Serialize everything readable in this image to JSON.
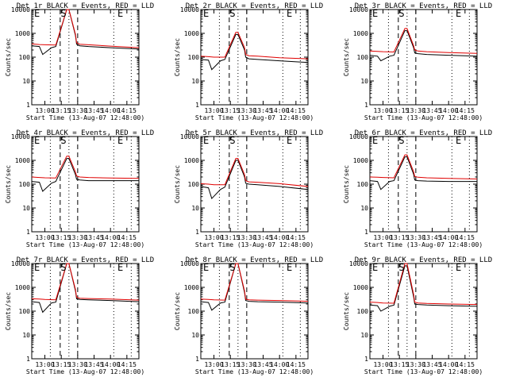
{
  "figure": {
    "xlabel": "Start Time (13-Aug-07 12:48:00)",
    "ylabel": "Counts/sec",
    "x_tick_labels": [
      "13:00",
      "13:15",
      "13:30",
      "13:45",
      "14:00",
      "14:15"
    ],
    "y_tick_labels": [
      "1",
      "10",
      "100",
      "1000",
      "10000"
    ],
    "markers": {
      "left": "E",
      "middle": "S",
      "right": "E"
    },
    "colors": {
      "events": "#000000",
      "lld": "#e00000"
    },
    "series_meaning": {
      "events": "Events",
      "lld": "LLD"
    },
    "y_scale": "log"
  },
  "chart_data": [
    {
      "type": "line",
      "title": "Det 1r BLACK = Events, RED = LLD",
      "xlim": [
        "12:48",
        "14:26"
      ],
      "ylim": [
        1,
        10000
      ],
      "series": [
        {
          "name": "Events",
          "x": [
            "12:48",
            "12:55",
            "12:58",
            "13:06",
            "13:10",
            "13:20",
            "13:22",
            "13:28",
            "13:29",
            "13:32",
            "13:40",
            "14:00",
            "14:26"
          ],
          "y": [
            300,
            280,
            130,
            250,
            280,
            10000,
            10000,
            800,
            350,
            300,
            280,
            250,
            220
          ]
        },
        {
          "name": "LLD",
          "x": [
            "12:48",
            "12:55",
            "13:00",
            "13:10",
            "13:20",
            "13:22",
            "13:28",
            "13:29",
            "13:32",
            "13:40",
            "14:00",
            "14:26"
          ],
          "y": [
            360,
            340,
            330,
            320,
            10000,
            10000,
            900,
            400,
            350,
            330,
            290,
            250
          ]
        }
      ],
      "vlines_dashed": [
        "13:14",
        "13:30"
      ],
      "vlines_dotted": [
        "13:05",
        "13:22",
        "14:03",
        "14:19"
      ]
    },
    {
      "type": "line",
      "title": "Det 2r BLACK = Events, RED = LLD",
      "xlim": [
        "12:48",
        "14:26"
      ],
      "ylim": [
        1,
        10000
      ],
      "series": [
        {
          "name": "Events",
          "x": [
            "12:48",
            "12:55",
            "12:58",
            "13:06",
            "13:10",
            "13:20",
            "13:22",
            "13:28",
            "13:29",
            "13:32",
            "13:40",
            "14:00",
            "14:26"
          ],
          "y": [
            80,
            75,
            30,
            70,
            80,
            900,
            900,
            200,
            100,
            85,
            80,
            70,
            60
          ]
        },
        {
          "name": "LLD",
          "x": [
            "12:48",
            "12:55",
            "13:00",
            "13:10",
            "13:20",
            "13:22",
            "13:28",
            "13:29",
            "13:32",
            "13:40",
            "14:00",
            "14:26"
          ],
          "y": [
            110,
            105,
            100,
            100,
            1100,
            1100,
            250,
            130,
            115,
            110,
            95,
            85
          ]
        }
      ],
      "vlines_dashed": [
        "13:14",
        "13:30"
      ],
      "vlines_dotted": [
        "13:05",
        "13:22",
        "14:03",
        "14:19"
      ]
    },
    {
      "type": "line",
      "title": "Det 3r BLACK = Events, RED = LLD",
      "xlim": [
        "12:48",
        "14:26"
      ],
      "ylim": [
        1,
        10000
      ],
      "series": [
        {
          "name": "Events",
          "x": [
            "12:48",
            "12:55",
            "12:58",
            "13:06",
            "13:10",
            "13:20",
            "13:22",
            "13:28",
            "13:29",
            "13:32",
            "13:40",
            "14:00",
            "14:26"
          ],
          "y": [
            120,
            110,
            70,
            110,
            120,
            1300,
            1300,
            250,
            150,
            140,
            130,
            120,
            110
          ]
        },
        {
          "name": "LLD",
          "x": [
            "12:48",
            "12:55",
            "13:00",
            "13:10",
            "13:20",
            "13:22",
            "13:28",
            "13:29",
            "13:32",
            "13:40",
            "14:00",
            "14:26"
          ],
          "y": [
            180,
            175,
            170,
            165,
            1600,
            1600,
            300,
            200,
            180,
            170,
            155,
            145
          ]
        }
      ],
      "vlines_dashed": [
        "13:14",
        "13:30"
      ],
      "vlines_dotted": [
        "13:05",
        "13:22",
        "14:03",
        "14:19"
      ]
    },
    {
      "type": "line",
      "title": "Det 4r BLACK = Events, RED = LLD",
      "xlim": [
        "12:48",
        "14:26"
      ],
      "ylim": [
        1,
        10000
      ],
      "series": [
        {
          "name": "Events",
          "x": [
            "12:48",
            "12:55",
            "12:58",
            "13:06",
            "13:10",
            "13:20",
            "13:22",
            "13:28",
            "13:29",
            "13:32",
            "13:40",
            "14:00",
            "14:26"
          ],
          "y": [
            130,
            120,
            50,
            110,
            130,
            1200,
            1200,
            250,
            160,
            150,
            140,
            140,
            140
          ]
        },
        {
          "name": "LLD",
          "x": [
            "12:48",
            "12:55",
            "13:00",
            "13:10",
            "13:20",
            "13:22",
            "13:28",
            "13:29",
            "13:32",
            "13:40",
            "14:00",
            "14:26"
          ],
          "y": [
            200,
            190,
            185,
            180,
            1500,
            1500,
            320,
            220,
            200,
            190,
            180,
            175
          ]
        }
      ],
      "vlines_dashed": [
        "13:14",
        "13:30"
      ],
      "vlines_dotted": [
        "13:05",
        "13:22",
        "14:03",
        "14:19"
      ]
    },
    {
      "type": "line",
      "title": "Det 5r BLACK = Events, RED = LLD",
      "xlim": [
        "12:48",
        "14:26"
      ],
      "ylim": [
        1,
        10000
      ],
      "series": [
        {
          "name": "Events",
          "x": [
            "12:48",
            "12:55",
            "12:58",
            "13:06",
            "13:10",
            "13:20",
            "13:22",
            "13:28",
            "13:29",
            "13:32",
            "13:40",
            "14:00",
            "14:26"
          ],
          "y": [
            80,
            70,
            25,
            60,
            75,
            1000,
            1000,
            200,
            110,
            100,
            95,
            80,
            60
          ]
        },
        {
          "name": "LLD",
          "x": [
            "12:48",
            "12:55",
            "13:00",
            "13:10",
            "13:20",
            "13:22",
            "13:28",
            "13:29",
            "13:32",
            "13:40",
            "14:00",
            "14:26"
          ],
          "y": [
            105,
            100,
            95,
            95,
            1200,
            1200,
            250,
            140,
            125,
            120,
            105,
            80
          ]
        }
      ],
      "vlines_dashed": [
        "13:14",
        "13:30"
      ],
      "vlines_dotted": [
        "13:05",
        "13:22",
        "14:03",
        "14:19"
      ]
    },
    {
      "type": "line",
      "title": "Det 6r BLACK = Events, RED = LLD",
      "xlim": [
        "12:48",
        "14:26"
      ],
      "ylim": [
        1,
        10000
      ],
      "series": [
        {
          "name": "Events",
          "x": [
            "12:48",
            "12:55",
            "12:58",
            "13:06",
            "13:10",
            "13:20",
            "13:22",
            "13:28",
            "13:29",
            "13:32",
            "13:40",
            "14:00",
            "14:26"
          ],
          "y": [
            140,
            130,
            60,
            130,
            140,
            1400,
            1400,
            260,
            150,
            140,
            135,
            130,
            130
          ]
        },
        {
          "name": "LLD",
          "x": [
            "12:48",
            "12:55",
            "13:00",
            "13:10",
            "13:20",
            "13:22",
            "13:28",
            "13:29",
            "13:32",
            "13:40",
            "14:00",
            "14:26"
          ],
          "y": [
            200,
            195,
            190,
            185,
            1700,
            1700,
            330,
            210,
            195,
            185,
            175,
            165
          ]
        }
      ],
      "vlines_dashed": [
        "13:14",
        "13:30"
      ],
      "vlines_dotted": [
        "13:05",
        "13:22",
        "14:03",
        "14:19"
      ]
    },
    {
      "type": "line",
      "title": "Det 7r BLACK = Events, RED = LLD",
      "xlim": [
        "12:48",
        "14:26"
      ],
      "ylim": [
        1,
        10000
      ],
      "series": [
        {
          "name": "Events",
          "x": [
            "12:48",
            "12:55",
            "12:58",
            "13:06",
            "13:10",
            "13:20",
            "13:22",
            "13:28",
            "13:29",
            "13:32",
            "13:40",
            "14:00",
            "14:26"
          ],
          "y": [
            250,
            230,
            90,
            220,
            240,
            10000,
            10000,
            700,
            330,
            310,
            300,
            280,
            250
          ]
        },
        {
          "name": "LLD",
          "x": [
            "12:48",
            "12:55",
            "13:00",
            "13:10",
            "13:20",
            "13:22",
            "13:28",
            "13:29",
            "13:32",
            "13:40",
            "14:00",
            "14:26"
          ],
          "y": [
            330,
            320,
            310,
            300,
            10000,
            10000,
            800,
            380,
            350,
            340,
            320,
            290
          ]
        }
      ],
      "vlines_dashed": [
        "13:14",
        "13:30"
      ],
      "vlines_dotted": [
        "13:05",
        "13:22",
        "14:03",
        "14:19"
      ]
    },
    {
      "type": "line",
      "title": "Det 8r BLACK = Events, RED = LLD",
      "xlim": [
        "12:48",
        "14:26"
      ],
      "ylim": [
        1,
        10000
      ],
      "series": [
        {
          "name": "Events",
          "x": [
            "12:48",
            "12:55",
            "12:58",
            "13:06",
            "13:10",
            "13:20",
            "13:22",
            "13:28",
            "13:29",
            "13:32",
            "13:40",
            "14:00",
            "14:26"
          ],
          "y": [
            250,
            230,
            110,
            220,
            240,
            10000,
            10000,
            600,
            280,
            260,
            250,
            240,
            220
          ]
        },
        {
          "name": "LLD",
          "x": [
            "12:48",
            "12:55",
            "13:00",
            "13:10",
            "13:20",
            "13:22",
            "13:28",
            "13:29",
            "13:32",
            "13:40",
            "14:00",
            "14:26"
          ],
          "y": [
            320,
            310,
            300,
            290,
            10000,
            10000,
            700,
            320,
            300,
            290,
            280,
            260
          ]
        }
      ],
      "vlines_dashed": [
        "13:14",
        "13:30"
      ],
      "vlines_dotted": [
        "13:05",
        "13:22",
        "14:03",
        "14:19"
      ]
    },
    {
      "type": "line",
      "title": "Det 9r BLACK = Events, RED = LLD",
      "xlim": [
        "12:48",
        "14:26"
      ],
      "ylim": [
        1,
        10000
      ],
      "series": [
        {
          "name": "Events",
          "x": [
            "12:48",
            "12:55",
            "12:58",
            "13:06",
            "13:10",
            "13:20",
            "13:22",
            "13:28",
            "13:29",
            "13:32",
            "13:40",
            "14:00",
            "14:26"
          ],
          "y": [
            180,
            170,
            100,
            160,
            180,
            8000,
            8000,
            400,
            200,
            190,
            180,
            170,
            160
          ]
        },
        {
          "name": "LLD",
          "x": [
            "12:48",
            "12:55",
            "13:00",
            "13:10",
            "13:20",
            "13:22",
            "13:28",
            "13:29",
            "13:32",
            "13:40",
            "14:00",
            "14:26"
          ],
          "y": [
            240,
            230,
            220,
            215,
            10000,
            10000,
            500,
            240,
            220,
            210,
            200,
            190
          ]
        }
      ],
      "vlines_dashed": [
        "13:14",
        "13:30"
      ],
      "vlines_dotted": [
        "13:05",
        "13:22",
        "14:03",
        "14:19"
      ]
    }
  ]
}
